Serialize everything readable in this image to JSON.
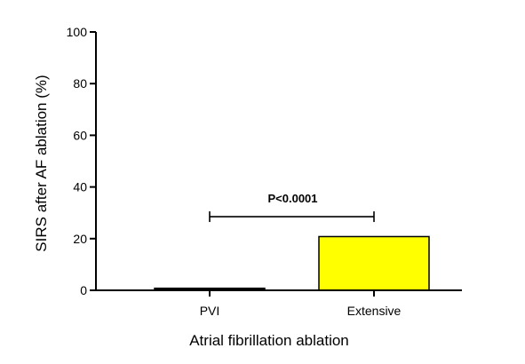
{
  "chart_data": {
    "type": "bar",
    "categories": [
      "PVI",
      "Extensive"
    ],
    "values": [
      0.8,
      20.8
    ],
    "colors": [
      "#000000",
      "#ffff00"
    ],
    "xlabel": "Atrial fibrillation ablation",
    "ylabel": "SIRS after AF ablation (%)",
    "ylim": [
      0,
      100
    ],
    "yticks": [
      "0",
      "20",
      "40",
      "60",
      "80",
      "100"
    ],
    "grid": false,
    "annotation": {
      "text": "P<0.0001",
      "between": [
        "PVI",
        "Extensive"
      ],
      "y": 28.5
    }
  }
}
